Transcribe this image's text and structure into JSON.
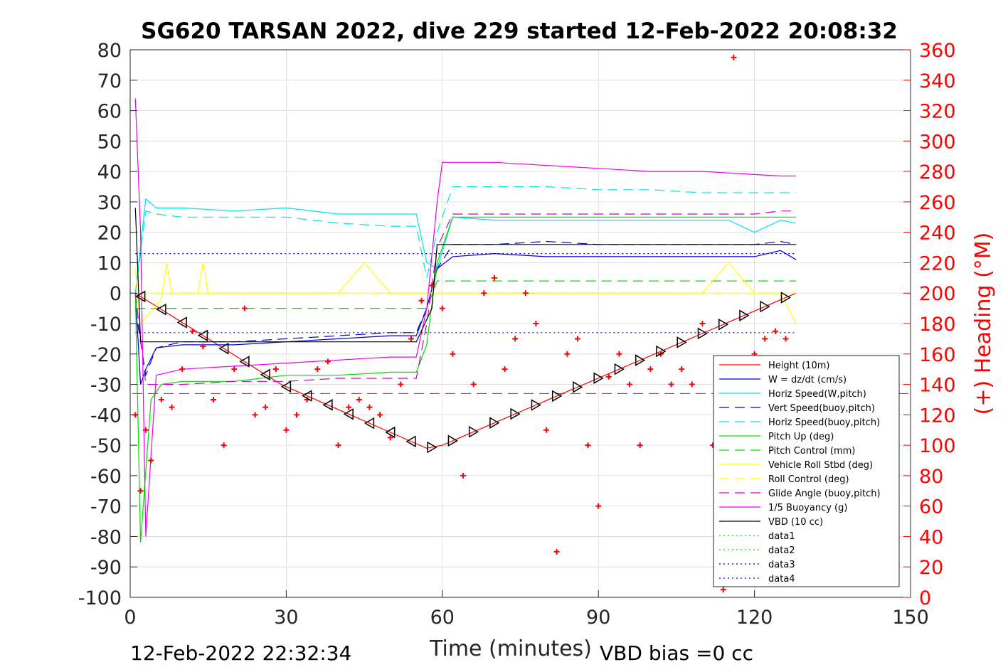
{
  "chart_data": {
    "type": "line",
    "title": "SG620 TARSAN 2022, dive 229 started 12-Feb-2022 20:08:32",
    "xlabel": "Time (minutes)",
    "ylabel_right": "(+) Heading (°M)",
    "xlim": [
      0,
      150
    ],
    "ylim_left": [
      -100,
      80
    ],
    "ylim_right": [
      0,
      360
    ],
    "grid": true,
    "legend_position": "bottom-right",
    "x_ticks": [
      "0",
      "30",
      "60",
      "90",
      "120",
      "150"
    ],
    "y_ticks_left": [
      "80",
      "70",
      "60",
      "50",
      "40",
      "30",
      "20",
      "10",
      "0",
      "-10",
      "-20",
      "-30",
      "-40",
      "-50",
      "-60",
      "-70",
      "-80",
      "-90",
      "-100"
    ],
    "y_ticks_right": [
      "360",
      "340",
      "320",
      "300",
      "280",
      "260",
      "240",
      "220",
      "200",
      "180",
      "160",
      "140",
      "120",
      "100",
      "80",
      "60",
      "40",
      "20",
      "0"
    ],
    "footer_left": "12-Feb-2022 22:32:34",
    "footer_right": "VBD bias =0 cc",
    "series": [
      {
        "name": "Height (10m)",
        "color": "#ff0000",
        "style": "solid",
        "x": [
          1,
          29,
          57,
          60,
          128
        ],
        "y": [
          0,
          -30,
          -51,
          -50,
          0
        ]
      },
      {
        "name": "W = dz/dt (cm/s)",
        "color": "#0000cd",
        "style": "solid",
        "x": [
          1,
          2,
          3,
          5,
          10,
          20,
          30,
          40,
          50,
          55,
          57,
          59,
          62,
          70,
          80,
          90,
          100,
          110,
          115,
          120,
          125,
          128
        ],
        "y": [
          0,
          -30,
          -25,
          -18,
          -17,
          -17,
          -16,
          -15,
          -14,
          -14,
          -5,
          8,
          12,
          13,
          12,
          12,
          12,
          12,
          12,
          12,
          14,
          11
        ]
      },
      {
        "name": "Horiz Speed(W,pitch)",
        "color": "#00e5e5",
        "style": "solid",
        "x": [
          1,
          3,
          5,
          10,
          20,
          30,
          40,
          50,
          55,
          57,
          59,
          62,
          70,
          80,
          90,
          100,
          110,
          115,
          120,
          125,
          128
        ],
        "y": [
          0,
          31,
          28,
          28,
          27,
          28,
          26,
          26,
          26,
          10,
          8,
          25,
          24,
          24,
          24,
          24,
          24,
          24,
          20,
          24,
          23
        ]
      },
      {
        "name": "Vert Speed(buoy,pitch)",
        "color": "#0000cd",
        "style": "dashed",
        "x": [
          1,
          3,
          5,
          10,
          20,
          30,
          40,
          50,
          55,
          57,
          59,
          62,
          70,
          80,
          90,
          100,
          110,
          115,
          120,
          125,
          128
        ],
        "y": [
          -5,
          -27,
          -18,
          -16,
          -16,
          -15,
          -14,
          -13,
          -13,
          -5,
          8,
          16,
          16,
          17,
          16,
          16,
          16,
          16,
          16,
          17,
          16
        ]
      },
      {
        "name": "Horiz Speed(buoy,pitch)",
        "color": "#00e5e5",
        "style": "dashed",
        "x": [
          1,
          3,
          5,
          10,
          20,
          30,
          40,
          50,
          55,
          57,
          59,
          62,
          70,
          80,
          90,
          100,
          110,
          115,
          120,
          125,
          128
        ],
        "y": [
          0,
          27,
          26,
          25,
          25,
          25,
          23,
          22,
          22,
          5,
          20,
          35,
          35,
          35,
          34,
          34,
          33,
          33,
          33,
          33,
          33
        ]
      },
      {
        "name": "Pitch Up (deg)",
        "color": "#00dd00",
        "style": "solid",
        "x": [
          1,
          2,
          4,
          6,
          10,
          20,
          30,
          40,
          50,
          55,
          57,
          59,
          62,
          70,
          80,
          90,
          100,
          110,
          115,
          120,
          125,
          128
        ],
        "y": [
          0,
          -82,
          -35,
          -30,
          -29,
          -29,
          -27,
          -27,
          -26,
          -26,
          -17,
          10,
          25,
          25,
          25,
          25,
          25,
          25,
          25,
          25,
          25,
          25
        ]
      },
      {
        "name": "Pitch Control (mm)",
        "color": "#00dd00",
        "style": "dashed",
        "x": [
          1,
          5,
          57,
          59,
          128
        ],
        "y": [
          -5,
          -5,
          -5,
          4,
          4
        ]
      },
      {
        "name": "Vehicle Roll Stbd (deg)",
        "color": "#ffff00",
        "style": "solid",
        "x": [
          1,
          2,
          6,
          7,
          8,
          13,
          14,
          15,
          20,
          30,
          40,
          45,
          50,
          55,
          60,
          65,
          70,
          80,
          90,
          100,
          110,
          115,
          120,
          125,
          128
        ],
        "y": [
          8,
          -10,
          -2,
          10,
          0,
          0,
          10,
          0,
          0,
          0,
          0,
          10,
          0,
          0,
          0,
          0,
          0,
          0,
          0,
          0,
          0,
          10,
          0,
          0,
          -10
        ]
      },
      {
        "name": "Roll Control (deg)",
        "color": "#ffff00",
        "style": "dashed",
        "x": [
          1,
          128
        ],
        "y": [
          0,
          0
        ]
      },
      {
        "name": "Glide Angle (buoy,pitch)",
        "color": "#cc00cc",
        "style": "dashed",
        "x": [
          1,
          3,
          5,
          10,
          20,
          30,
          40,
          50,
          55,
          57,
          59,
          62,
          70,
          80,
          90,
          100,
          110,
          115,
          120,
          125,
          128
        ],
        "y": [
          0,
          -30,
          -30,
          -30,
          -29,
          -29,
          -28,
          -28,
          -28,
          -10,
          15,
          26,
          26,
          26,
          26,
          26,
          26,
          26,
          26,
          27,
          27
        ]
      },
      {
        "name": "1/5 Buoyancy (g)",
        "color": "#ee00ee",
        "style": "solid",
        "x": [
          1,
          2,
          3,
          5,
          10,
          20,
          30,
          40,
          50,
          55,
          57,
          59,
          60,
          62,
          70,
          80,
          90,
          100,
          110,
          120,
          125,
          128
        ],
        "y": [
          64,
          20,
          -80,
          -27,
          -25,
          -24,
          -23,
          -22,
          -21,
          -21,
          -5,
          30,
          43,
          43,
          43,
          42,
          41,
          40,
          40,
          39,
          38.5,
          38.5
        ]
      },
      {
        "name": "VBD (10 cc)",
        "color": "#000000",
        "style": "solid",
        "x": [
          1,
          2,
          55,
          58,
          59,
          128
        ],
        "y": [
          28,
          -16,
          -16,
          -5,
          16,
          16
        ]
      },
      {
        "name": "data1",
        "color": "#00dd00",
        "style": "dotted",
        "x": [],
        "y": []
      },
      {
        "name": "data2",
        "color": "#00dd00",
        "style": "dotted",
        "x": [],
        "y": []
      },
      {
        "name": "data3",
        "color": "#0000aa",
        "style": "dotted",
        "x": [
          1,
          128
        ],
        "y": [
          13,
          13
        ]
      },
      {
        "name": "data4",
        "color": "#0000ff",
        "style": "dotted",
        "x": [
          1,
          128
        ],
        "y": [
          -13,
          -13
        ]
      }
    ],
    "red_dashed_reference": {
      "color": "#ff0000",
      "style": "dashed",
      "y": -33
    },
    "heading_points": {
      "name": "(+) Heading (°M)",
      "color": "#ff0000",
      "x": [
        1,
        2,
        3,
        4,
        6,
        8,
        10,
        12,
        14,
        16,
        18,
        20,
        22,
        24,
        26,
        28,
        30,
        32,
        34,
        36,
        38,
        40,
        42,
        44,
        46,
        48,
        50,
        52,
        54,
        56,
        58,
        60,
        62,
        64,
        66,
        68,
        70,
        72,
        74,
        76,
        78,
        80,
        82,
        84,
        86,
        88,
        90,
        92,
        94,
        96,
        98,
        100,
        102,
        104,
        106,
        108,
        110,
        112,
        114,
        116,
        118,
        120,
        122,
        124,
        126,
        128
      ],
      "y": [
        120,
        70,
        110,
        90,
        130,
        125,
        150,
        175,
        165,
        130,
        100,
        150,
        190,
        120,
        125,
        150,
        110,
        120,
        130,
        150,
        155,
        100,
        125,
        130,
        125,
        120,
        105,
        140,
        170,
        195,
        205,
        190,
        160,
        80,
        140,
        200,
        210,
        150,
        170,
        200,
        180,
        110,
        30,
        160,
        170,
        100,
        60,
        145,
        160,
        140,
        100,
        150,
        160,
        140,
        150,
        140,
        180,
        100,
        5,
        355,
        130,
        160,
        170,
        175,
        170,
        150
      ]
    }
  }
}
